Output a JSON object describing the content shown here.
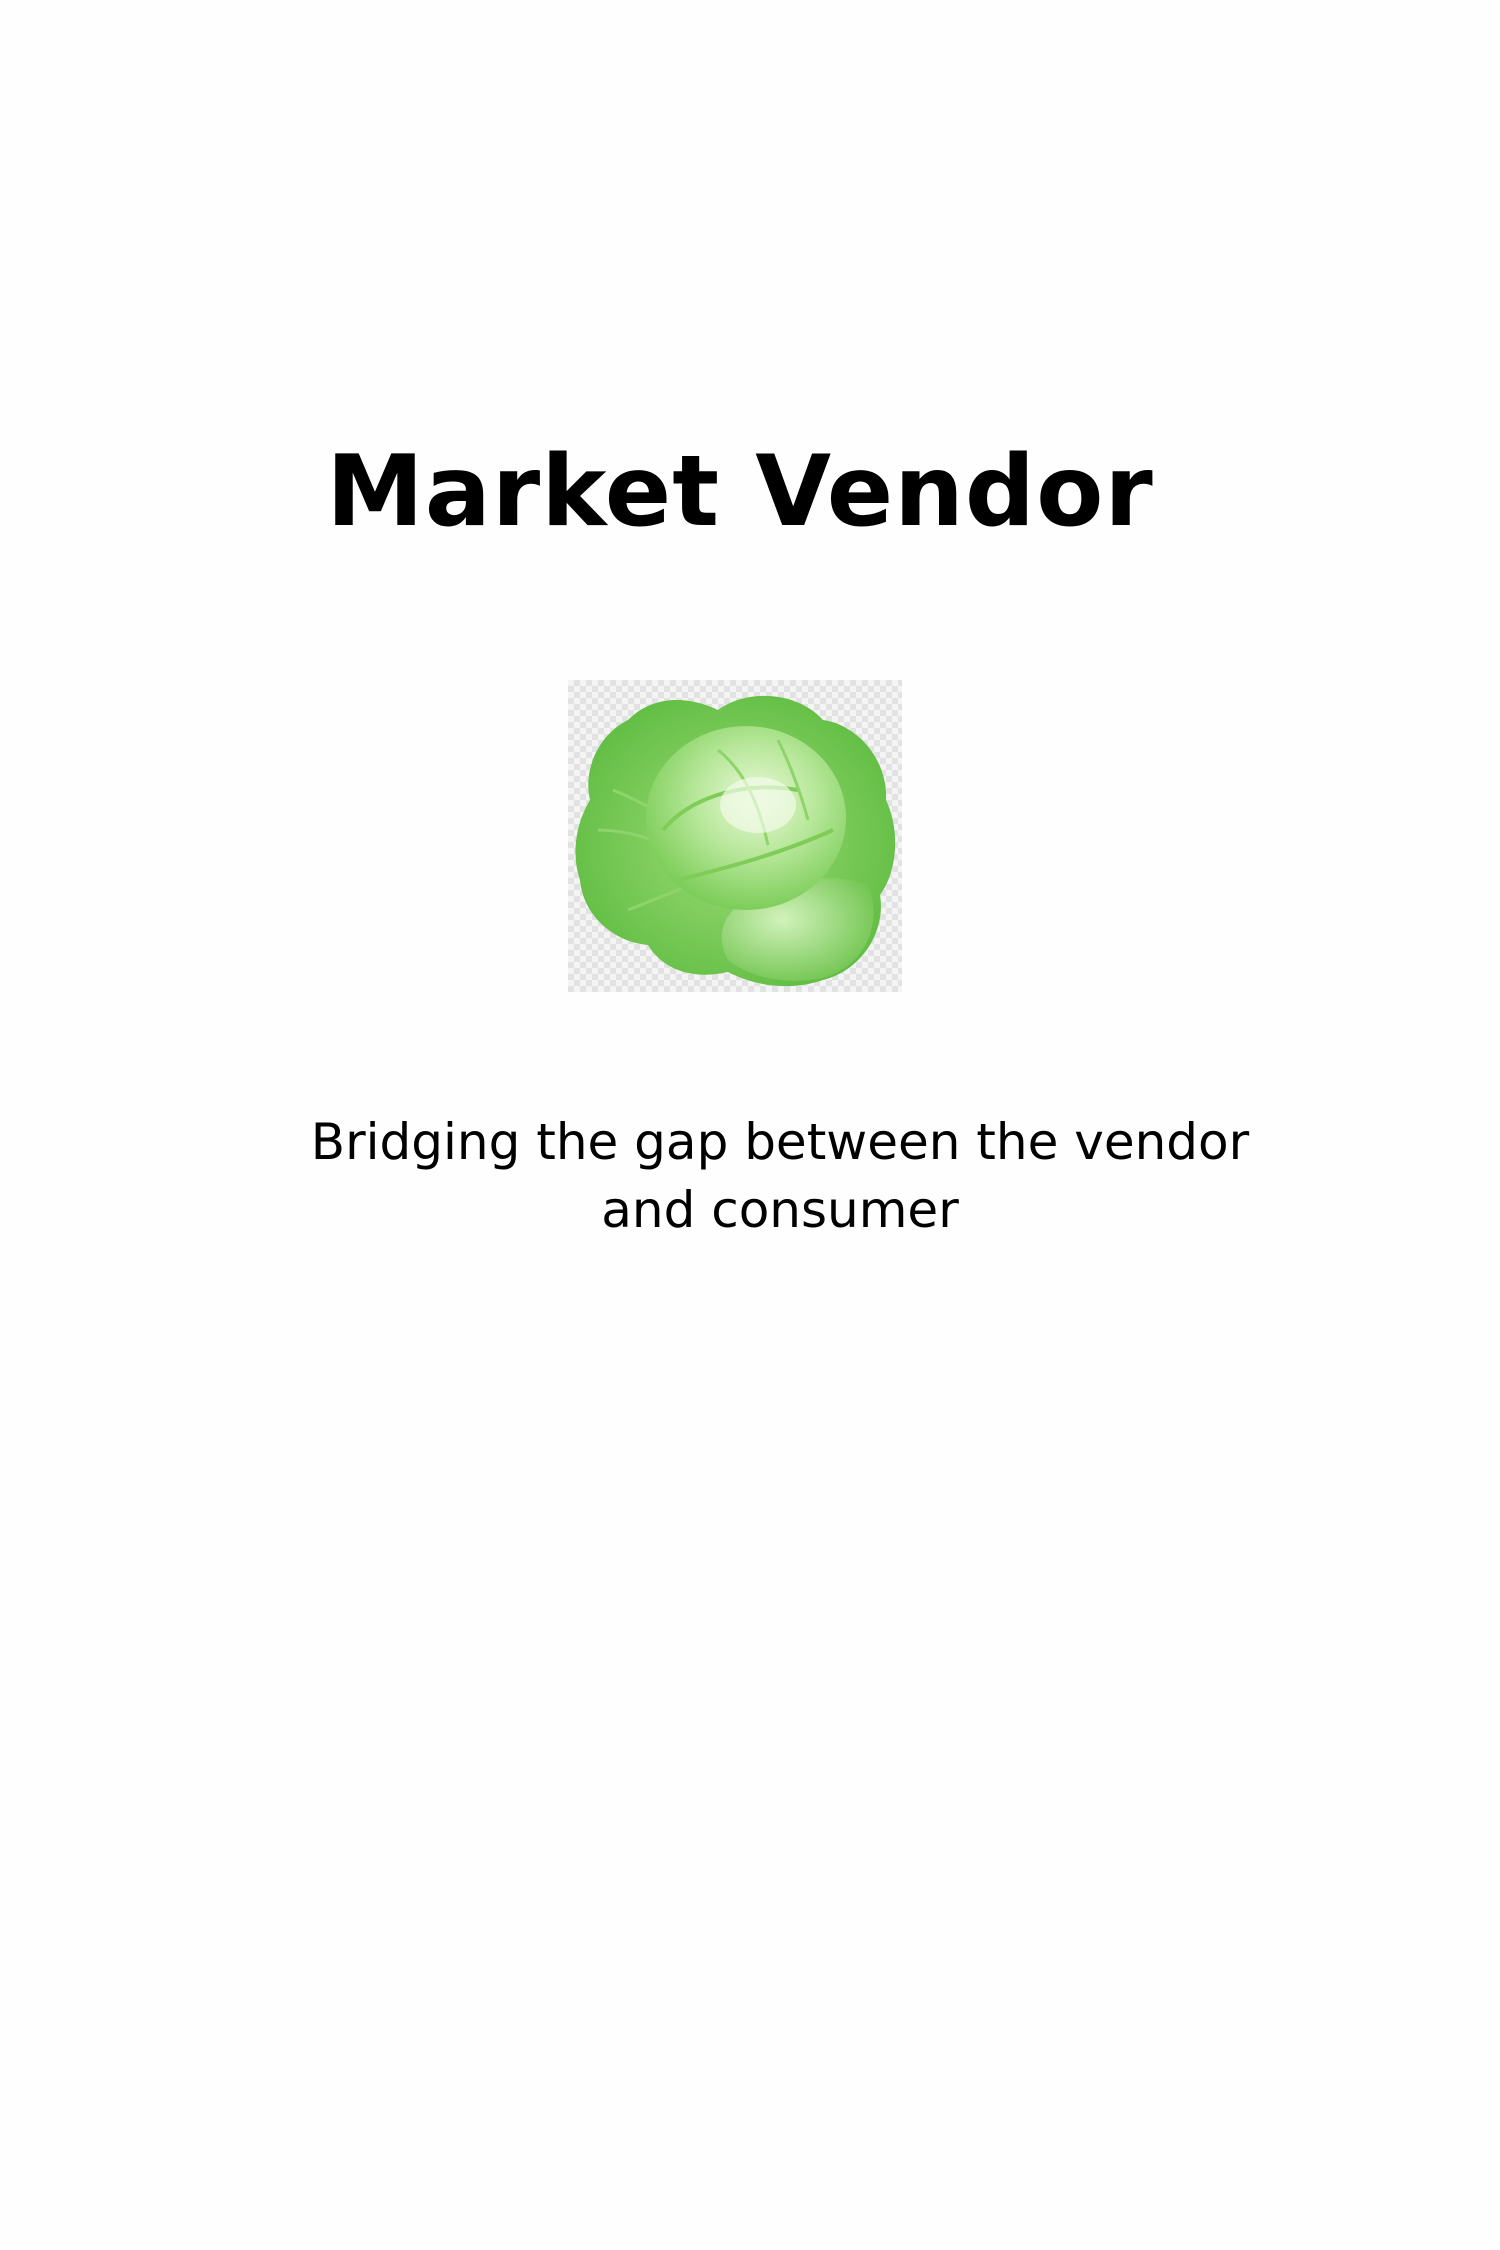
{
  "splash": {
    "title": "Market Vendor",
    "logo_icon": "cabbage-icon",
    "tagline": "Bridging the gap between the vendor and consumer"
  },
  "colors": {
    "background": "#fefefe",
    "text": "#000000",
    "logo_green_dark": "#4fae3a",
    "logo_green_light": "#b9e89c"
  }
}
